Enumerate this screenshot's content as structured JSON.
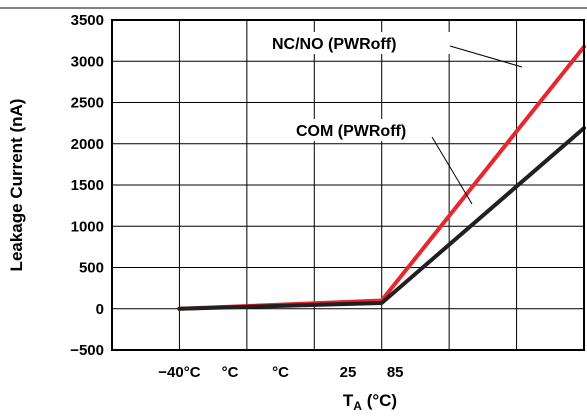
{
  "chart_data": {
    "type": "line",
    "xlabel_main": "T",
    "xlabel_sub": "A",
    "xlabel_unit": " (°C)",
    "ylabel": "Leakage Current (nA)",
    "ylim": [
      -500,
      3500
    ],
    "yticks": [
      "3500",
      "3000",
      "2500",
      "2000",
      "1500",
      "1000",
      "500",
      "0",
      "−500"
    ],
    "ytick_values": [
      3500,
      3000,
      2500,
      2000,
      1500,
      1000,
      500,
      0,
      -500
    ],
    "xlim": [
      0,
      7
    ],
    "xtick_labels": [
      {
        "label": "−40°C",
        "x": 1
      },
      {
        "label": "°C",
        "x": 1.75
      },
      {
        "label": "°C",
        "x": 2.5
      },
      {
        "label": "25",
        "x": 3.5
      },
      {
        "label": "85",
        "x": 4.2
      }
    ],
    "grid": true,
    "series": [
      {
        "name": "NC/NO (PWRoff)",
        "color": "#e8262d",
        "x": [
          1,
          4,
          7
        ],
        "y": [
          0,
          100,
          3175
        ]
      },
      {
        "name": "COM (PWRoff)",
        "color": "#231f20",
        "x": [
          1,
          4,
          7
        ],
        "y": [
          0,
          70,
          2190
        ]
      }
    ]
  }
}
